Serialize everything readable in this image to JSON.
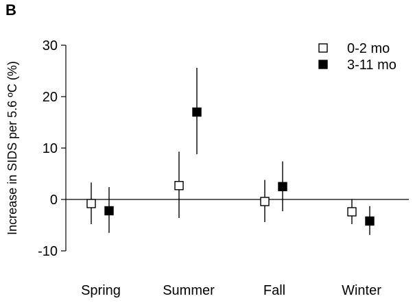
{
  "panel_label": "B",
  "chart_data": {
    "type": "scatter",
    "ylabel": "Increase in SIDS per 5.6 ºC (%)",
    "ylim": [
      -10,
      30
    ],
    "yticks": [
      -10,
      0,
      10,
      20,
      30
    ],
    "categories": [
      "Spring",
      "Summer",
      "Fall",
      "Winter"
    ],
    "series": [
      {
        "name": "0-2 mo",
        "marker": "open-square",
        "values": [
          -0.8,
          2.7,
          -0.4,
          -2.4
        ],
        "ci_low": [
          -4.8,
          -3.6,
          -4.4,
          -4.8
        ],
        "ci_high": [
          3.3,
          9.3,
          3.8,
          0.1
        ]
      },
      {
        "name": "3-11 mo",
        "marker": "filled-square",
        "values": [
          -2.2,
          17.0,
          2.5,
          -4.2
        ],
        "ci_low": [
          -6.5,
          8.8,
          -2.3,
          -6.9
        ],
        "ci_high": [
          2.4,
          25.6,
          7.4,
          -1.3
        ]
      }
    ],
    "legend_position": "top-right",
    "grid": false
  }
}
